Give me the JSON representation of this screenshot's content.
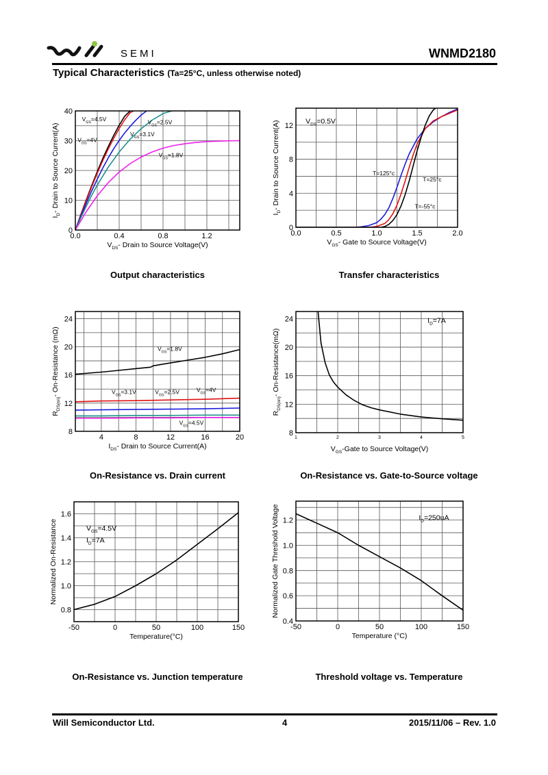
{
  "header": {
    "brand": "SEMI",
    "part_number": "WNMD2180",
    "section_title": "Typical Characteristics",
    "section_subtitle": "(Ta=25°C, unless otherwise noted)",
    "logo_dot_color": "#8dc63f"
  },
  "footer": {
    "company": "Will Semiconductor Ltd.",
    "page": "4",
    "revision": "2015/11/06 – Rev. 1.0"
  },
  "chart_data": [
    {
      "id": "output",
      "type": "line",
      "title": "Output characteristics",
      "xlabel_main": "V",
      "xlabel_sub": "DS",
      "xlabel_rest": "- Drain to Source Voltage(V)",
      "ylabel_main": "I",
      "ylabel_sub": "D",
      "ylabel_rest": "- Drain to Source Current(A)",
      "xlim": [
        0,
        1.5
      ],
      "ylim": [
        0,
        40
      ],
      "xticks": [
        0.0,
        0.4,
        0.8,
        1.2
      ],
      "xtick_labels": [
        "0.0",
        "0.4",
        "0.8",
        "1.2"
      ],
      "yticks": [
        0,
        10,
        20,
        30,
        40
      ],
      "ytick_labels": [
        "0",
        "10",
        "20",
        "30",
        "40"
      ],
      "xgrid": [
        0.2,
        0.4,
        0.6,
        0.8,
        1.0,
        1.2,
        1.4
      ],
      "ygrid": [
        5,
        10,
        15,
        20,
        25,
        30,
        35
      ],
      "grid": true,
      "series": [
        {
          "name": "VGS=4.5V",
          "color": "#000000",
          "x": [
            0,
            0.05,
            0.1,
            0.15,
            0.2,
            0.25,
            0.3,
            0.35,
            0.4,
            0.45,
            0.5
          ],
          "y": [
            0,
            5.2,
            10.2,
            15,
            19.6,
            24,
            28,
            31.8,
            35.2,
            38.2,
            40.5
          ]
        },
        {
          "name": "VGS=4V",
          "color": "#e01010",
          "x": [
            0,
            0.05,
            0.1,
            0.15,
            0.2,
            0.25,
            0.3,
            0.35,
            0.4,
            0.45,
            0.5,
            0.53
          ],
          "y": [
            0,
            5,
            9.9,
            14.6,
            19.1,
            23.3,
            27.2,
            30.8,
            34.1,
            37,
            39.4,
            40.5
          ]
        },
        {
          "name": "VGS=3.1V",
          "color": "#1a1adc",
          "x": [
            0,
            0.05,
            0.1,
            0.15,
            0.2,
            0.25,
            0.3,
            0.35,
            0.4,
            0.45,
            0.5,
            0.55,
            0.6,
            0.65
          ],
          "y": [
            0,
            4.6,
            9,
            13.2,
            17.1,
            20.8,
            24.2,
            27.3,
            30.1,
            32.6,
            34.8,
            36.8,
            38.6,
            40.3
          ]
        },
        {
          "name": "VGS=2.5V",
          "color": "#1f8f8f",
          "x": [
            0,
            0.05,
            0.1,
            0.15,
            0.2,
            0.3,
            0.4,
            0.5,
            0.6,
            0.7,
            0.8,
            0.88
          ],
          "y": [
            0,
            4.1,
            8,
            11.7,
            15.1,
            21.1,
            26.2,
            30.5,
            34,
            36.9,
            39.1,
            40.3
          ]
        },
        {
          "name": "VGS=1.8V",
          "color": "#ee20ee",
          "x": [
            0,
            0.1,
            0.2,
            0.3,
            0.4,
            0.5,
            0.6,
            0.7,
            0.8,
            0.9,
            1.0,
            1.1,
            1.2,
            1.3,
            1.4,
            1.5
          ],
          "y": [
            0,
            6.2,
            11.5,
            15.9,
            19.5,
            22.3,
            24.5,
            26.2,
            27.5,
            28.4,
            29,
            29.4,
            29.7,
            29.85,
            29.95,
            30
          ]
        }
      ],
      "annotations": [
        {
          "main": "V",
          "sub": "GS",
          "rest": "=4.5V",
          "x": 0.06,
          "y": 36.5
        },
        {
          "main": "V",
          "sub": "GS",
          "rest": "=4V",
          "x": 0.02,
          "y": 29.5
        },
        {
          "main": "V",
          "sub": "GS",
          "rest": "=3.1V",
          "x": 0.5,
          "y": 31.5
        },
        {
          "main": "V",
          "sub": "GS",
          "rest": "=2.5V",
          "x": 0.66,
          "y": 35.5
        },
        {
          "main": "V",
          "sub": "GS",
          "rest": "=1.8V",
          "x": 0.76,
          "y": 24.5
        }
      ]
    },
    {
      "id": "transfer",
      "type": "line",
      "title": "Transfer characteristics",
      "xlabel_main": "V",
      "xlabel_sub": "GS",
      "xlabel_rest": "- Gate to Source Voltage(V)",
      "ylabel_main": "I",
      "ylabel_sub": "D",
      "ylabel_rest": "- Drain to Source Current(A)",
      "xlim": [
        0,
        2.0
      ],
      "ylim": [
        0,
        14
      ],
      "xticks": [
        0,
        0.5,
        1.0,
        1.5,
        2.0
      ],
      "xtick_labels": [
        "0.0",
        "0.5",
        "1.0",
        "1.5",
        "2.0"
      ],
      "yticks": [
        0,
        4,
        8,
        12
      ],
      "ytick_labels": [
        "0",
        "4",
        "8",
        "12"
      ],
      "xgrid": [
        0.25,
        0.5,
        0.75,
        1.0,
        1.25,
        1.5,
        1.75
      ],
      "ygrid": [
        2,
        4,
        6,
        8,
        10,
        12
      ],
      "grid": true,
      "series": [
        {
          "name": "T=125°C",
          "color": "#1a1adc",
          "x": [
            0,
            0.7,
            0.8,
            0.9,
            1.0,
            1.05,
            1.1,
            1.15,
            1.2,
            1.25,
            1.3,
            1.35,
            1.4,
            1.5,
            1.6,
            1.7,
            1.8,
            1.9,
            2.0
          ],
          "y": [
            0,
            0,
            0.05,
            0.2,
            0.55,
            0.95,
            1.5,
            2.3,
            3.4,
            4.7,
            6.1,
            7.4,
            8.6,
            10.4,
            11.6,
            12.4,
            13,
            13.5,
            13.9
          ]
        },
        {
          "name": "T=25°C",
          "color": "#e01010",
          "x": [
            0,
            0.9,
            1.0,
            1.1,
            1.15,
            1.2,
            1.25,
            1.3,
            1.35,
            1.4,
            1.45,
            1.5,
            1.6,
            1.7,
            1.8,
            1.9,
            2.0
          ],
          "y": [
            0,
            0,
            0.1,
            0.45,
            0.9,
            1.6,
            2.6,
            3.9,
            5.4,
            7.0,
            8.5,
            9.8,
            11.6,
            12.5,
            13,
            13.4,
            13.8
          ]
        },
        {
          "name": "T=-55°C",
          "color": "#000000",
          "x": [
            0,
            1.05,
            1.1,
            1.15,
            1.2,
            1.25,
            1.3,
            1.35,
            1.4,
            1.45,
            1.5,
            1.55,
            1.6,
            1.65,
            1.7,
            1.73
          ],
          "y": [
            0,
            0,
            0.1,
            0.35,
            0.8,
            1.5,
            2.5,
            3.8,
            5.4,
            7.2,
            9.0,
            10.6,
            12,
            13.1,
            13.8,
            14.1
          ]
        }
      ],
      "annotations": [
        {
          "main": "V",
          "sub": "DS",
          "rest": "=0.5V",
          "x": 0.12,
          "y": 12.2,
          "size": "big"
        },
        {
          "main": "T=125°c",
          "sub": "",
          "rest": "",
          "x": 0.95,
          "y": 6.1
        },
        {
          "main": "T=25°c",
          "sub": "",
          "rest": "",
          "x": 1.57,
          "y": 5.4
        },
        {
          "main": "T=-55°c",
          "sub": "",
          "rest": "",
          "x": 1.47,
          "y": 2.2
        }
      ]
    },
    {
      "id": "rds-vs-id",
      "type": "line",
      "title": "On-Resistance vs. Drain current",
      "xlabel_main": "I",
      "xlabel_sub": "DS",
      "xlabel_rest": "- Drain to Source Current(A)",
      "ylabel_main": "R",
      "ylabel_sub": "DS(on)",
      "ylabel_rest": "- On-Resistance (mΩ)",
      "xlim": [
        1,
        20
      ],
      "ylim": [
        8,
        25
      ],
      "xticks": [
        4,
        8,
        12,
        16,
        20
      ],
      "xtick_labels": [
        "4",
        "8",
        "12",
        "16",
        "20"
      ],
      "yticks": [
        8,
        12,
        16,
        20,
        24
      ],
      "ytick_labels": [
        "8",
        "12",
        "16",
        "20",
        "24"
      ],
      "xgrid": [
        2,
        4,
        6,
        8,
        10,
        12,
        14,
        16,
        18
      ],
      "ygrid": [
        10,
        12,
        14,
        16,
        18,
        20,
        22,
        24
      ],
      "grid": true,
      "series": [
        {
          "name": "VGS=1.8V",
          "color": "#000000",
          "x": [
            1,
            2,
            4,
            6,
            8,
            9.7,
            10,
            12,
            14,
            16,
            18,
            20
          ],
          "y": [
            16.1,
            16.2,
            16.4,
            16.65,
            16.9,
            17.1,
            17.3,
            17.7,
            18.1,
            18.5,
            19,
            19.6
          ]
        },
        {
          "name": "VGS=2.5V",
          "color": "#e01010",
          "x": [
            1,
            4,
            8,
            12,
            16,
            20
          ],
          "y": [
            12.2,
            12.3,
            12.35,
            12.45,
            12.55,
            12.7
          ]
        },
        {
          "name": "VGS=3.1V",
          "color": "#1a1adc",
          "x": [
            1,
            4,
            8,
            12,
            16,
            20
          ],
          "y": [
            11.0,
            11.05,
            11.1,
            11.15,
            11.2,
            11.3
          ]
        },
        {
          "name": "VGS=4V",
          "color": "#1f8f8f",
          "x": [
            1,
            4,
            8,
            12,
            16,
            20
          ],
          "y": [
            10.2,
            10.2,
            10.25,
            10.25,
            10.3,
            10.3
          ]
        },
        {
          "name": "VGS=4.5V",
          "color": "#ee20ee",
          "x": [
            1,
            4,
            8,
            12,
            16,
            20
          ],
          "y": [
            9.85,
            9.85,
            9.9,
            9.9,
            9.95,
            9.95
          ]
        }
      ],
      "annotations": [
        {
          "main": "V",
          "sub": "GS",
          "rest": "=1.8V",
          "x": 10.5,
          "y": 19.4
        },
        {
          "main": "V",
          "sub": "GS",
          "rest": "=3.1V",
          "x": 5.2,
          "y": 13.3
        },
        {
          "main": "V",
          "sub": "GS",
          "rest": "=2.5V",
          "x": 10.2,
          "y": 13.3
        },
        {
          "main": "V",
          "sub": "GS",
          "rest": "=4V",
          "x": 15.0,
          "y": 13.6
        },
        {
          "main": "V",
          "sub": "GS",
          "rest": "=4.5V",
          "x": 13.0,
          "y": 8.9
        }
      ]
    },
    {
      "id": "rds-vs-vgs",
      "type": "line",
      "title": "On-Resistance vs. Gate-to-Source voltage",
      "xlabel_main": "V",
      "xlabel_sub": "GS",
      "xlabel_rest": "-Gate to Source Voltage(V)",
      "ylabel_main": "R",
      "ylabel_sub": "DS(on)",
      "ylabel_rest": "- On-Resistance(mΩ)",
      "xlim": [
        1,
        5
      ],
      "ylim": [
        8,
        25
      ],
      "xticks": [
        1,
        2,
        3,
        4,
        5
      ],
      "xtick_labels": [
        "1",
        "2",
        "3",
        "4",
        "5"
      ],
      "xtick_small": true,
      "yticks": [
        8,
        12,
        16,
        20,
        24
      ],
      "ytick_labels": [
        "8",
        "12",
        "16",
        "20",
        "24"
      ],
      "xgrid": [
        1.5,
        2,
        2.5,
        3,
        3.5,
        4,
        4.5
      ],
      "ygrid": [
        10,
        12,
        14,
        16,
        18,
        20,
        22,
        24
      ],
      "grid": true,
      "series": [
        {
          "name": "ID=7A",
          "color": "#000000",
          "x": [
            1.53,
            1.6,
            1.7,
            1.8,
            1.9,
            2.0,
            2.2,
            2.4,
            2.6,
            2.8,
            3.0,
            3.5,
            4.0,
            4.5,
            5.0
          ],
          "y": [
            25,
            20.6,
            17.8,
            16.1,
            15.1,
            14.4,
            13.3,
            12.5,
            11.9,
            11.5,
            11.2,
            10.6,
            10.2,
            9.95,
            9.75
          ]
        }
      ],
      "annotations": [
        {
          "main": "I",
          "sub": "D",
          "rest": "=7A",
          "x": 4.15,
          "y": 23.4,
          "size": "big"
        }
      ]
    },
    {
      "id": "rds-vs-temp",
      "type": "line",
      "title": "On-Resistance vs. Junction temperature",
      "xlabel_main": "Temperature(",
      "xlabel_sub": "",
      "xlabel_rest": "°C)",
      "ylabel_main": "Normalized On-Resistance",
      "ylabel_sub": "",
      "ylabel_rest": "",
      "xlim": [
        -50,
        150
      ],
      "ylim": [
        0.7,
        1.7
      ],
      "xticks": [
        -50,
        0,
        50,
        100,
        150
      ],
      "xtick_labels": [
        "-50",
        "0",
        "50",
        "100",
        "150"
      ],
      "yticks": [
        0.8,
        1.0,
        1.2,
        1.4,
        1.6
      ],
      "ytick_labels": [
        "0.8",
        "1.0",
        "1.2",
        "1.4",
        "1.6"
      ],
      "xgrid": [
        -25,
        0,
        25,
        50,
        75,
        100,
        125
      ],
      "ygrid": [
        0.8,
        0.9,
        1.0,
        1.1,
        1.2,
        1.3,
        1.4,
        1.5,
        1.6
      ],
      "grid": true,
      "series": [
        {
          "name": "VGS=4.5V ID=7A",
          "color": "#000000",
          "x": [
            -50,
            -25,
            0,
            25,
            50,
            75,
            100,
            125,
            150
          ],
          "y": [
            0.8,
            0.845,
            0.91,
            1.0,
            1.1,
            1.215,
            1.345,
            1.475,
            1.61
          ]
        }
      ],
      "annotations": [
        {
          "main": "V",
          "sub": "GS",
          "rest": "=4.5V",
          "x": -35,
          "y": 1.46,
          "size": "big"
        },
        {
          "main": "I",
          "sub": "D",
          "rest": "=7A",
          "x": -35,
          "y": 1.36,
          "size": "big"
        }
      ]
    },
    {
      "id": "vth-vs-temp",
      "type": "line",
      "title": "Threshold voltage vs. Temperature",
      "xlabel_main": "Temperature (",
      "xlabel_sub": "",
      "xlabel_rest": "°C)",
      "ylabel_main": "Normalized Gate Threshold Voltage",
      "ylabel_sub": "",
      "ylabel_rest": "",
      "xlim": [
        -50,
        150
      ],
      "ylim": [
        0.4,
        1.35
      ],
      "xticks": [
        -50,
        0,
        50,
        100,
        150
      ],
      "xtick_labels": [
        "-50",
        "0",
        "50",
        "100",
        "150"
      ],
      "yticks": [
        0.4,
        0.6,
        0.8,
        1.0,
        1.2
      ],
      "ytick_labels": [
        "0.4",
        "0.6",
        "0.8",
        "1.0",
        "1.2"
      ],
      "xgrid": [
        -25,
        0,
        25,
        50,
        75,
        100,
        125
      ],
      "ygrid": [
        0.5,
        0.6,
        0.7,
        0.8,
        0.9,
        1.0,
        1.1,
        1.2,
        1.3
      ],
      "grid": true,
      "series": [
        {
          "name": "ID=250uA",
          "color": "#000000",
          "x": [
            -50,
            -25,
            0,
            25,
            50,
            75,
            100,
            125,
            150
          ],
          "y": [
            1.25,
            1.175,
            1.1,
            1.0,
            0.91,
            0.82,
            0.72,
            0.6,
            0.485
          ]
        }
      ],
      "annotations": [
        {
          "main": "I",
          "sub": "D",
          "rest": "=250uA",
          "x": 97,
          "y": 1.2,
          "size": "big"
        }
      ]
    }
  ]
}
